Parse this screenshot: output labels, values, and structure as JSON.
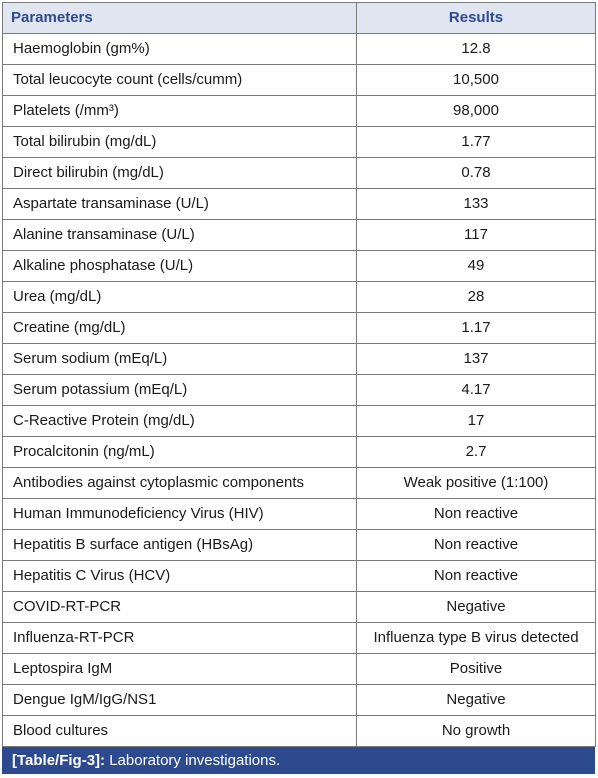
{
  "table": {
    "headers": {
      "parameters": "Parameters",
      "results": "Results"
    },
    "rows": [
      {
        "parameter": "Haemoglobin (gm%)",
        "result": "12.8"
      },
      {
        "parameter": "Total leucocyte count (cells/cumm)",
        "result": "10,500"
      },
      {
        "parameter": "Platelets (/mm³)",
        "result": "98,000"
      },
      {
        "parameter": "Total bilirubin (mg/dL)",
        "result": "1.77"
      },
      {
        "parameter": "Direct bilirubin (mg/dL)",
        "result": "0.78"
      },
      {
        "parameter": "Aspartate transaminase (U/L)",
        "result": "133"
      },
      {
        "parameter": "Alanine transaminase (U/L)",
        "result": "117"
      },
      {
        "parameter": "Alkaline phosphatase (U/L)",
        "result": "49"
      },
      {
        "parameter": "Urea (mg/dL)",
        "result": "28"
      },
      {
        "parameter": "Creatine (mg/dL)",
        "result": "1.17"
      },
      {
        "parameter": "Serum sodium (mEq/L)",
        "result": "137"
      },
      {
        "parameter": "Serum potassium (mEq/L)",
        "result": "4.17"
      },
      {
        "parameter": "C-Reactive Protein (mg/dL)",
        "result": "17"
      },
      {
        "parameter": "Procalcitonin (ng/mL)",
        "result": "2.7"
      },
      {
        "parameter": "Antibodies against cytoplasmic components",
        "result": "Weak positive (1:100)"
      },
      {
        "parameter": "Human Immunodeficiency Virus (HIV)",
        "result": "Non reactive"
      },
      {
        "parameter": "Hepatitis B surface antigen (HBsAg)",
        "result": "Non reactive"
      },
      {
        "parameter": "Hepatitis C Virus (HCV)",
        "result": "Non reactive"
      },
      {
        "parameter": "COVID-RT-PCR",
        "result": "Negative"
      },
      {
        "parameter": "Influenza-RT-PCR",
        "result": "Influenza type B virus detected"
      },
      {
        "parameter": "Leptospira IgM",
        "result": "Positive"
      },
      {
        "parameter": "Dengue IgM/IgG/NS1",
        "result": "Negative"
      },
      {
        "parameter": "Blood cultures",
        "result": "No growth"
      }
    ]
  },
  "caption": {
    "tag": "[Table/Fig-3]:",
    "text": "Laboratory investigations."
  },
  "colors": {
    "header_bg": "#dfe6f2",
    "header_text": "#2d4a8f",
    "caption_bg": "#2d4a8f",
    "border": "#7a7a7a"
  }
}
